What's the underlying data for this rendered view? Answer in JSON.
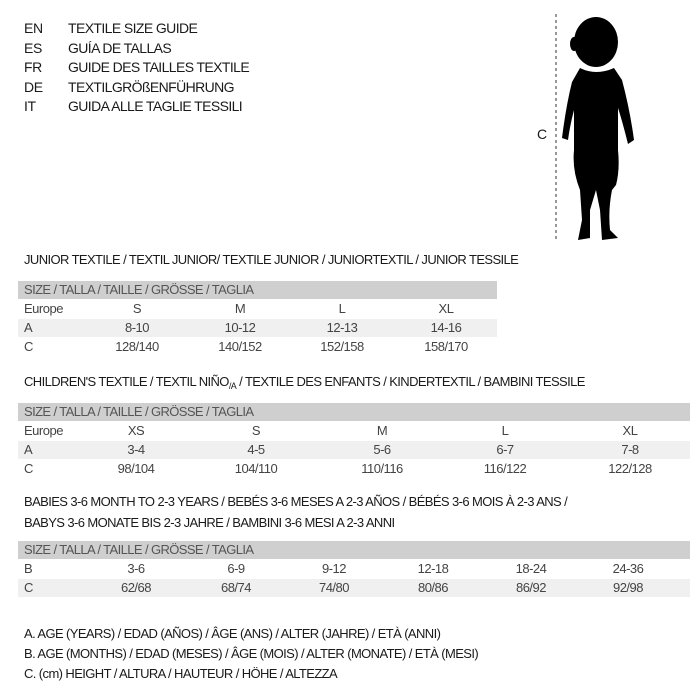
{
  "languages": [
    {
      "code": "EN",
      "title": "TEXTILE SIZE GUIDE"
    },
    {
      "code": "ES",
      "title": "GUÍA DE TALLAS"
    },
    {
      "code": "FR",
      "title": "GUIDE DES TAILLES TEXTILE"
    },
    {
      "code": "DE",
      "title": "TEXTILGRÖßENFÜHRUNG"
    },
    {
      "code": "IT",
      "title": "GUIDA ALLE TAGLIE TESSILI"
    }
  ],
  "figure": {
    "label": "C"
  },
  "junior": {
    "title": "JUNIOR TEXTILE / TEXTIL JUNIOR/ TEXTILE JUNIOR / JUNIORTEXTIL / JUNIOR TESSILE",
    "header": "SIZE / TALLA / TAILLE / GRÖSSE / TAGLIA",
    "rows": [
      {
        "label": "Europe",
        "values": [
          "S",
          "M",
          "L",
          "XL"
        ]
      },
      {
        "label": "A",
        "values": [
          "8-10",
          "10-12",
          "12-13",
          "14-16"
        ]
      },
      {
        "label": "C",
        "values": [
          "128/140",
          "140/152",
          "152/158",
          "158/170"
        ]
      }
    ]
  },
  "children": {
    "title": "CHILDREN'S TEXTILE / TEXTIL NIÑO",
    "title_sub": "/A",
    "title_rest": " / TEXTILE DES ENFANTS / KINDERTEXTIL / BAMBINI TESSILE",
    "header": "SIZE / TALLA / TAILLE / GRÖSSE / TAGLIA",
    "rows": [
      {
        "label": "Europe",
        "values": [
          "XS",
          "S",
          "M",
          "L",
          "XL"
        ]
      },
      {
        "label": "A",
        "values": [
          "3-4",
          "4-5",
          "5-6",
          "6-7",
          "7-8"
        ]
      },
      {
        "label": "C",
        "values": [
          "98/104",
          "104/110",
          "110/116",
          "116/122",
          "122/128"
        ]
      }
    ]
  },
  "babies": {
    "title_line1": "BABIES 3-6 MONTH TO 2-3 YEARS / BEBÉS 3-6 MESES A 2-3 AÑOS / BÉBÉS 3-6 MOIS À 2-3 ANS /",
    "title_line2": "BABYS 3-6 MONATE BIS 2-3 JAHRE / BAMBINI 3-6 MESI A 2-3 ANNI",
    "header": "SIZE / TALLA / TAILLE / GRÖSSE / TAGLIA",
    "rows": [
      {
        "label": "B",
        "values": [
          "3-6",
          "6-9",
          "9-12",
          "12-18",
          "18-24",
          "24-36"
        ]
      },
      {
        "label": "C",
        "values": [
          "62/68",
          "68/74",
          "74/80",
          "80/86",
          "86/92",
          "92/98"
        ]
      }
    ]
  },
  "legend": [
    "A. AGE (YEARS) / EDAD (AÑOS) / ÂGE (ANS) / ALTER (JAHRE) / ETÀ (ANNI)",
    "B. AGE (MONTHS) / EDAD (MESES) / ÂGE (MOIS) / ALTER (MONATE) / ETÀ (MESI)",
    "C. (cm) HEIGHT / ALTURA / HAUTEUR / HÖHE / ALTEZZA"
  ]
}
